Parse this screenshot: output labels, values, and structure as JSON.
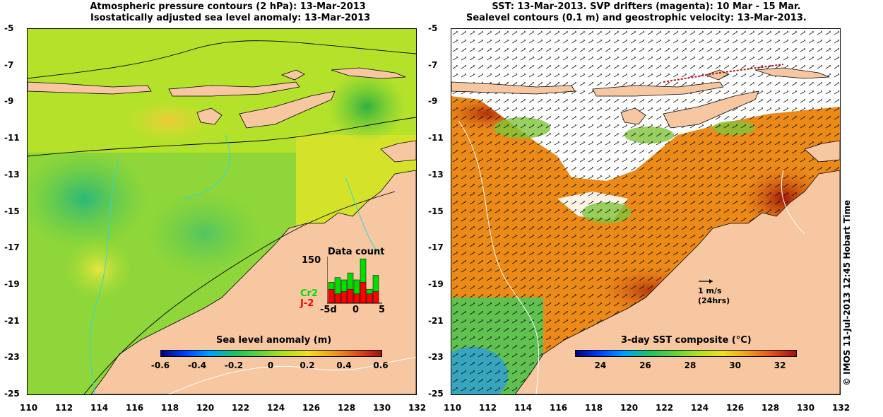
{
  "left_panel": {
    "title_line1": "Atmospheric pressure contours (2 hPa): 13-Mar-2013",
    "title_line2": "Isostatically adjusted sea level anomaly: 13-Mar-2013",
    "colorbar": {
      "title": "Sea level anomaly (m)",
      "ticks": [
        "-0.6",
        "-0.4",
        "-0.2",
        "0",
        "0.2",
        "0.4",
        "0.6"
      ]
    },
    "inset": {
      "title": "Data count",
      "y_label": "150",
      "x_labels": [
        "-5d",
        "0",
        "5"
      ],
      "series": [
        {
          "name": "Cr2",
          "color": "#00dd00"
        },
        {
          "name": "J-2",
          "color": "#ff0000"
        }
      ],
      "bars_total": [
        0.45,
        0.55,
        0.5,
        0.65,
        0.5,
        0.95,
        0.3,
        0.6
      ],
      "bars_red": [
        0.3,
        0.2,
        0.25,
        0.3,
        0.2,
        0.45,
        0.2,
        0.25
      ]
    }
  },
  "right_panel": {
    "title_line1": "SST: 13-Mar-2013. SVP drifters (magenta): 10 Mar - 15 Mar.",
    "title_line2": "Sealevel contours (0.1 m) and geostrophic velocity: 13-Mar-2013.",
    "colorbar": {
      "title": "3-day SST composite (°C)",
      "ticks": [
        "24",
        "26",
        "28",
        "30",
        "32"
      ]
    },
    "velocity_scale": {
      "line1": "1 m/s",
      "line2": "(24hrs)"
    }
  },
  "axes": {
    "y_ticks": [
      "-5",
      "-7",
      "-9",
      "-11",
      "-13",
      "-15",
      "-17",
      "-19",
      "-21",
      "-23",
      "-25"
    ],
    "x_ticks": [
      "110",
      "112",
      "114",
      "116",
      "118",
      "120",
      "122",
      "124",
      "126",
      "128",
      "130",
      "132"
    ]
  },
  "side_text": "© IMOS 11-Jul-2013 12:45 Hobart Time",
  "colors": {
    "land": "#f6c7a0",
    "sea_green": "#7ad23a",
    "sea_yellow": "#c8e61e",
    "sst_orange": "#ec8a18",
    "cloud": "#ffffff"
  }
}
